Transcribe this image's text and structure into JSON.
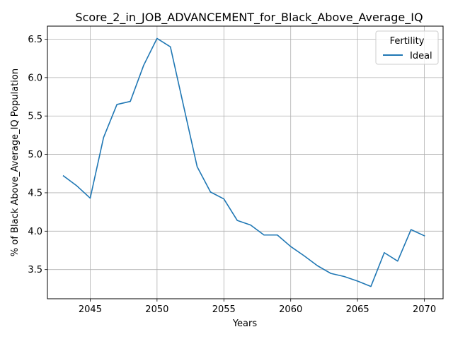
{
  "chart_data": {
    "type": "line",
    "title": "Score_2_in_JOB_ADVANCEMENT_for_Black_Above_Average_IQ",
    "xlabel": "Years",
    "ylabel": "% of Black Above_Average_IQ Population",
    "xlim": [
      2041.8,
      2071.4
    ],
    "ylim": [
      3.12,
      6.67
    ],
    "xticks": [
      2045,
      2050,
      2055,
      2060,
      2065,
      2070
    ],
    "yticks": [
      3.5,
      4.0,
      4.5,
      5.0,
      5.5,
      6.0,
      6.5
    ],
    "ytick_labels": [
      "3.5",
      "4.0",
      "4.5",
      "5.0",
      "5.5",
      "6.0",
      "6.5"
    ],
    "grid": true,
    "legend": {
      "title": "Fertility",
      "placement": "upper-right"
    },
    "x": [
      2043,
      2044,
      2045,
      2046,
      2047,
      2048,
      2049,
      2050,
      2051,
      2052,
      2053,
      2054,
      2055,
      2056,
      2057,
      2058,
      2059,
      2060,
      2061,
      2062,
      2063,
      2064,
      2065,
      2066,
      2067,
      2068,
      2069,
      2070
    ],
    "series": [
      {
        "name": "Ideal",
        "color": "#1f77b4",
        "values": [
          4.72,
          4.59,
          4.43,
          5.22,
          5.65,
          5.69,
          6.16,
          6.51,
          6.4,
          5.62,
          4.84,
          4.51,
          4.42,
          4.14,
          4.08,
          3.95,
          3.95,
          3.8,
          3.68,
          3.55,
          3.45,
          3.41,
          3.35,
          3.28,
          3.72,
          3.61,
          4.02,
          3.94
        ]
      }
    ]
  }
}
